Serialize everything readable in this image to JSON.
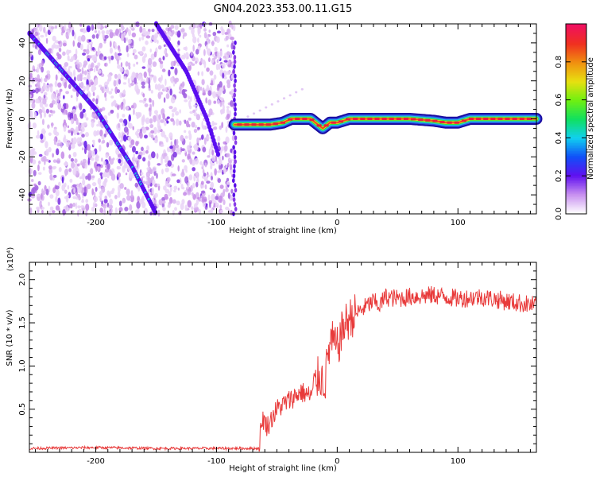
{
  "title": "GN04.2023.353.00.11.G15",
  "chart_data": [
    {
      "type": "heatmap",
      "xlabel": "Height of straight line (km)",
      "ylabel": "Frequency (Hz)",
      "xlim": [
        -255,
        165
      ],
      "ylim": [
        -50,
        50
      ],
      "xticks": [
        -200,
        -100,
        0,
        100
      ],
      "xtick_labels": [
        "-200",
        "-100",
        "0",
        "100"
      ],
      "yticks": [
        -40,
        -20,
        0,
        20,
        40
      ],
      "ytick_labels": [
        "-40",
        "-20",
        "0",
        "20",
        "40"
      ],
      "colorbar": {
        "label": "Normalized spectral amplitude",
        "range": [
          0,
          1
        ],
        "ticks": [
          0.0,
          0.2,
          0.4,
          0.6,
          0.8
        ],
        "tick_labels": [
          "0.0",
          "0.2",
          "0.4",
          "0.6",
          "0.8"
        ]
      },
      "diagonal_tracks": [
        {
          "x": [
            -255,
            -200,
            -170,
            -150
          ],
          "y": [
            45,
            5,
            -25,
            -50
          ]
        },
        {
          "x": [
            -150,
            -125,
            -108,
            -98
          ],
          "y": [
            50,
            25,
            0,
            -20
          ]
        }
      ],
      "main_track": {
        "x": [
          -85,
          -70,
          -55,
          -45,
          -38,
          -30,
          -22,
          -16,
          -12,
          -6,
          0,
          10,
          30,
          60,
          80,
          90,
          100,
          110,
          130,
          165
        ],
        "y": [
          -3,
          -3,
          -3,
          -2,
          0,
          0,
          0,
          -3,
          -5,
          -2,
          -2,
          0,
          0,
          0,
          -1,
          -2,
          -2,
          0,
          0,
          0
        ]
      }
    },
    {
      "type": "line",
      "xlabel": "Height of straight line (km)",
      "ylabel": "SNR (10 * v/v)",
      "y_multiplier_label": "(x10⁴)",
      "xlim": [
        -255,
        165
      ],
      "ylim": [
        0,
        2.2
      ],
      "xticks": [
        -200,
        -100,
        0,
        100
      ],
      "xtick_labels": [
        "-200",
        "-100",
        "0",
        "100"
      ],
      "yticks": [
        0.5,
        1.0,
        1.5,
        2.0
      ],
      "ytick_labels": [
        "0.5",
        "1.0",
        "1.5",
        "2.0"
      ],
      "color": "#e83a3a",
      "series": [
        {
          "x": [
            -255,
            -200,
            -150,
            -100,
            -65,
            -62,
            -58,
            -50,
            -40,
            -30,
            -22,
            -15,
            -10,
            -8,
            -5,
            0,
            5,
            10,
            20,
            30,
            35,
            40,
            50,
            60,
            80,
            100,
            120,
            140,
            165
          ],
          "y": [
            0.04,
            0.05,
            0.04,
            0.04,
            0.04,
            0.4,
            0.3,
            0.5,
            0.6,
            0.7,
            0.65,
            0.9,
            0.8,
            1.1,
            1.3,
            1.2,
            1.45,
            1.55,
            1.65,
            1.75,
            1.7,
            1.8,
            1.78,
            1.8,
            1.82,
            1.78,
            1.8,
            1.75,
            1.7
          ]
        }
      ]
    }
  ]
}
